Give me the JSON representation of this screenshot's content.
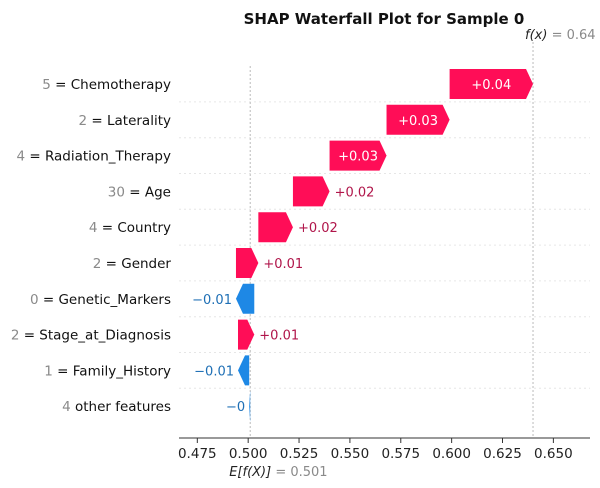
{
  "chart_data": {
    "type": "waterfall",
    "title": "SHAP Waterfall Plot for Sample 0",
    "base_value": 0.501,
    "output_value": 0.64,
    "fx_label": "f(x)",
    "fx_value_text": "0.64",
    "ex_label": "E[f(X)]",
    "ex_value_text": "0.501",
    "xlim": [
      0.466,
      0.668
    ],
    "x_ticks": [
      0.475,
      0.5,
      0.525,
      0.55,
      0.575,
      0.6,
      0.625,
      0.65
    ],
    "x_tick_labels": [
      "0.475",
      "0.500",
      "0.525",
      "0.550",
      "0.575",
      "0.600",
      "0.625",
      "0.650"
    ],
    "features": [
      {
        "value": "5",
        "name": "Chemotherapy",
        "start": 0.599,
        "end": 0.64,
        "label": "+0.04",
        "sign": "pos"
      },
      {
        "value": "2",
        "name": "Laterality",
        "start": 0.568,
        "end": 0.599,
        "label": "+0.03",
        "sign": "pos"
      },
      {
        "value": "4",
        "name": "Radiation_Therapy",
        "start": 0.54,
        "end": 0.568,
        "label": "+0.03",
        "sign": "pos"
      },
      {
        "value": "30",
        "name": "Age",
        "start": 0.522,
        "end": 0.54,
        "label": "+0.02",
        "sign": "pos"
      },
      {
        "value": "4",
        "name": "Country",
        "start": 0.505,
        "end": 0.522,
        "label": "+0.02",
        "sign": "pos"
      },
      {
        "value": "2",
        "name": "Gender",
        "start": 0.494,
        "end": 0.505,
        "label": "+0.01",
        "sign": "pos"
      },
      {
        "value": "0",
        "name": "Genetic_Markers",
        "start": 0.503,
        "end": 0.494,
        "label": "−0.01",
        "sign": "neg"
      },
      {
        "value": "2",
        "name": "Stage_at_Diagnosis",
        "start": 0.495,
        "end": 0.503,
        "label": "+0.01",
        "sign": "pos"
      },
      {
        "value": "1",
        "name": "Family_History",
        "start": 0.5005,
        "end": 0.495,
        "label": "−0.01",
        "sign": "neg"
      },
      {
        "value": "4",
        "name": "other features",
        "start": 0.501,
        "end": 0.5005,
        "label": "−0",
        "sign": "neg"
      }
    ],
    "colors": {
      "positive": "#ff0d57",
      "negative": "#1e88e5",
      "positive_text": "#b0154a",
      "negative_text": "#1e6fb5",
      "gray_text": "#8a8a8a",
      "axis": "#333333"
    }
  }
}
